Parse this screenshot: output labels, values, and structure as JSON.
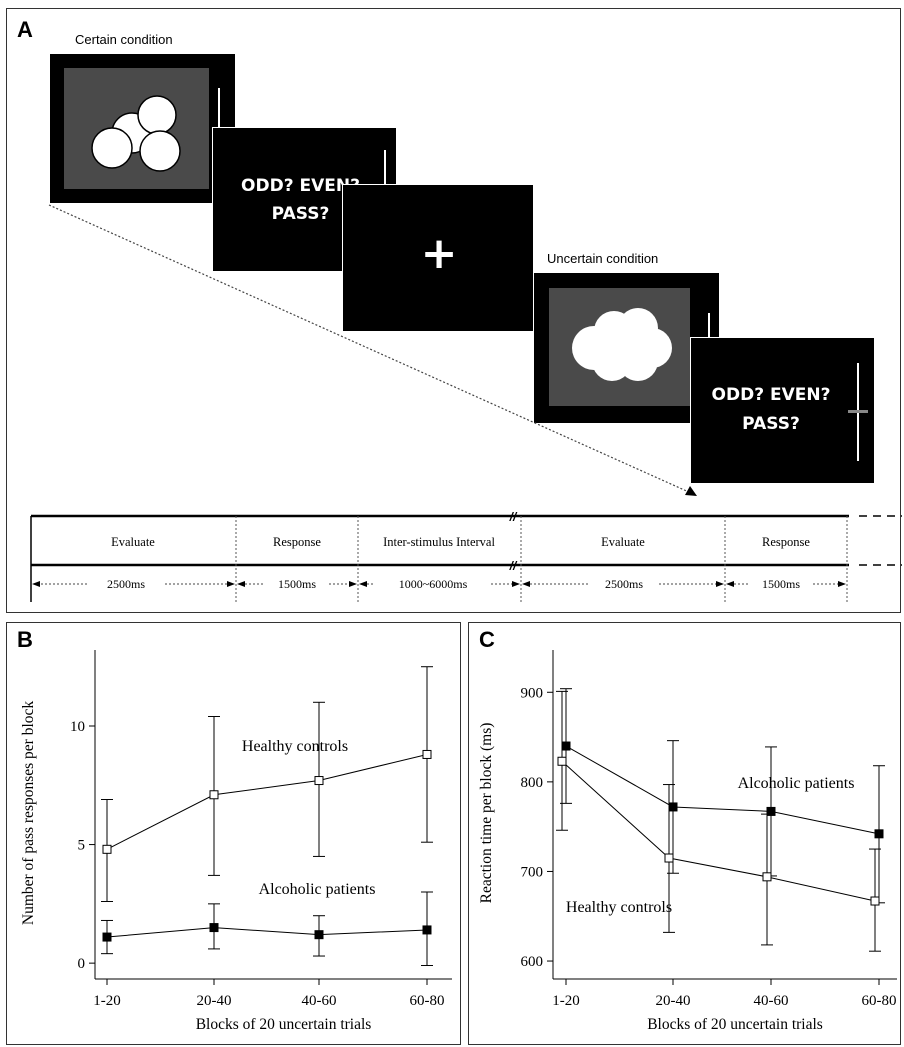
{
  "panel_a": {
    "label": "A",
    "certain_label": "Certain condition",
    "uncertain_label": "Uncertain condition",
    "question_line1": "ODD?  EVEN?",
    "question_line2": "PASS?",
    "fixation": "+",
    "timeline": {
      "phases": [
        "Evaluate",
        "Response",
        "Inter-stimulus Interval",
        "Evaluate",
        "Response"
      ],
      "durations": [
        "2500ms",
        "1500ms",
        "1000~6000ms",
        "2500ms",
        "1500ms"
      ],
      "break_mark": "//"
    }
  },
  "chart_data": [
    {
      "panel_label": "B",
      "type": "line",
      "title": "",
      "xlabel": "Blocks of 20 uncertain trials",
      "ylabel": "Number of pass responses per block",
      "categories": [
        "1-20",
        "20-40",
        "40-60",
        "60-80"
      ],
      "yticks": [
        0,
        5,
        10
      ],
      "ylim": [
        -0.5,
        13.5
      ],
      "series": [
        {
          "name": "Healthy controls",
          "marker": "open-square",
          "values": [
            4.8,
            7.1,
            7.7,
            8.8
          ],
          "err_low": [
            2.6,
            3.7,
            4.5,
            5.1
          ],
          "err_high": [
            6.9,
            10.4,
            11.0,
            12.5
          ]
        },
        {
          "name": "Alcoholic patients",
          "marker": "filled-square",
          "values": [
            1.1,
            1.5,
            1.2,
            1.4
          ],
          "err_low": [
            0.4,
            0.6,
            0.3,
            -0.1
          ],
          "err_high": [
            1.8,
            2.5,
            2.0,
            3.0
          ]
        }
      ],
      "annotations": [
        "Healthy controls",
        "Alcoholic patients"
      ]
    },
    {
      "panel_label": "C",
      "type": "line",
      "title": "",
      "xlabel": "Blocks of 20 uncertain trials",
      "ylabel": "Reaction time per block (ms)",
      "categories": [
        "1-20",
        "20-40",
        "40-60",
        "60-80"
      ],
      "yticks": [
        600,
        700,
        800,
        900
      ],
      "ylim": [
        590,
        955
      ],
      "series": [
        {
          "name": "Alcoholic patients",
          "marker": "filled-square",
          "values": [
            840,
            772,
            767,
            742
          ],
          "err_low": [
            776,
            698,
            695,
            665
          ],
          "err_high": [
            904,
            846,
            839,
            818
          ]
        },
        {
          "name": "Healthy controls",
          "marker": "open-square",
          "values": [
            823,
            715,
            694,
            667
          ],
          "err_low": [
            746,
            632,
            618,
            611
          ],
          "err_high": [
            901,
            797,
            764,
            725
          ]
        }
      ],
      "annotations": [
        "Alcoholic patients",
        "Healthy controls"
      ]
    }
  ]
}
